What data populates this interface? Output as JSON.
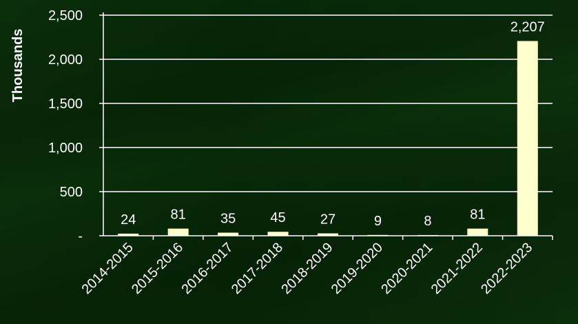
{
  "chart_data": {
    "type": "bar",
    "title": "",
    "xlabel": "",
    "ylabel": "Thousands",
    "categories": [
      "2014-2015",
      "2015-2016",
      "2016-2017",
      "2017-2018",
      "2018-2019",
      "2019-2020",
      "2020-2021",
      "2021-2022",
      "2022-2023"
    ],
    "values": [
      24,
      81,
      35,
      45,
      27,
      9,
      8,
      81,
      2207
    ],
    "data_labels": [
      "24",
      "81",
      "35",
      "45",
      "27",
      "9",
      "8",
      "81",
      "2,207"
    ],
    "ylim": [
      0,
      2500
    ],
    "yticks": [
      0,
      500,
      1000,
      1500,
      2000,
      2500
    ],
    "ytick_labels": [
      "-",
      "500",
      "1,000",
      "1,500",
      "2,000",
      "2,500"
    ],
    "grid": true,
    "legend": "none",
    "colors": {
      "bar": "#ffffcc",
      "grid": "#ffffff",
      "axis": "#ffffff",
      "text": "#ffffff",
      "background": "#0a2e0a"
    }
  }
}
